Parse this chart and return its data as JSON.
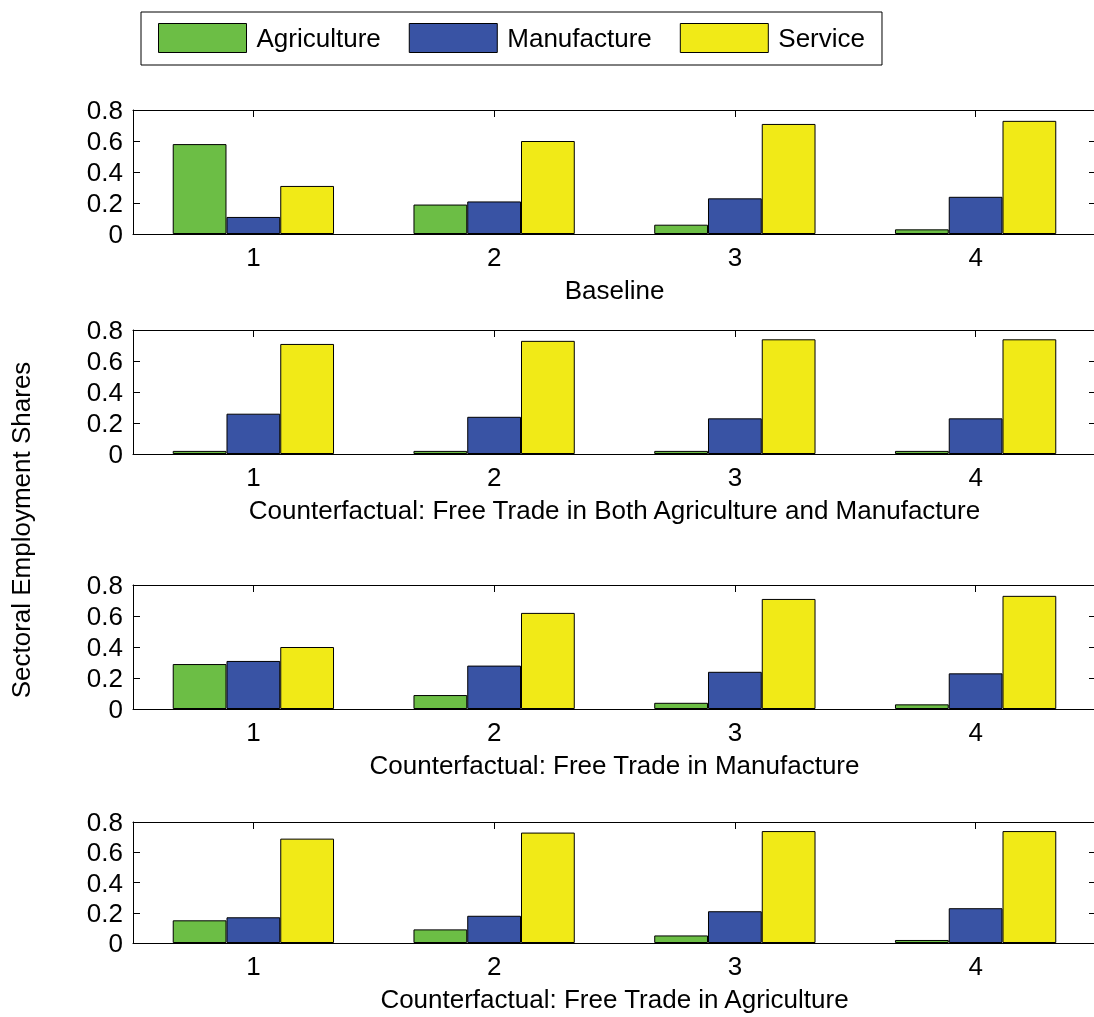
{
  "chart_data": [
    {
      "type": "bar",
      "xlabel": "Baseline",
      "categories": [
        "1",
        "2",
        "3",
        "4"
      ],
      "series": [
        {
          "name": "Agriculture",
          "color": "#6cbe45",
          "values": [
            0.58,
            0.19,
            0.06,
            0.03
          ]
        },
        {
          "name": "Manufacture",
          "color": "#3953a4",
          "values": [
            0.11,
            0.21,
            0.23,
            0.24
          ]
        },
        {
          "name": "Service",
          "color": "#f1ea17",
          "values": [
            0.31,
            0.6,
            0.71,
            0.73
          ]
        }
      ],
      "ylim": [
        0,
        0.8
      ],
      "yticks": [
        0,
        0.2,
        0.4,
        0.6,
        0.8
      ],
      "legend": "top"
    },
    {
      "type": "bar",
      "xlabel": "Counterfactual: Free Trade in Both Agriculture and Manufacture",
      "ylabel": "Sectoral Employment Shares",
      "categories": [
        "1",
        "2",
        "3",
        "4"
      ],
      "series": [
        {
          "color": "#6cbe45",
          "values": [
            0.02,
            0.02,
            0.02,
            0.02
          ]
        },
        {
          "color": "#3953a4",
          "values": [
            0.26,
            0.24,
            0.23,
            0.23
          ]
        },
        {
          "color": "#f1ea17",
          "values": [
            0.71,
            0.73,
            0.74,
            0.74
          ]
        }
      ],
      "ylim": [
        0,
        0.8
      ],
      "yticks": [
        0,
        0.2,
        0.4,
        0.6,
        0.8
      ]
    },
    {
      "type": "bar",
      "xlabel": "Counterfactual: Free Trade in Manufacture",
      "categories": [
        "1",
        "2",
        "3",
        "4"
      ],
      "series": [
        {
          "color": "#6cbe45",
          "values": [
            0.29,
            0.09,
            0.04,
            0.03
          ]
        },
        {
          "color": "#3953a4",
          "values": [
            0.31,
            0.28,
            0.24,
            0.23
          ]
        },
        {
          "color": "#f1ea17",
          "values": [
            0.4,
            0.62,
            0.71,
            0.73
          ]
        }
      ],
      "ylim": [
        0,
        0.8
      ],
      "yticks": [
        0,
        0.2,
        0.4,
        0.6,
        0.8
      ]
    },
    {
      "type": "bar",
      "xlabel": "Counterfactual: Free Trade in Agriculture",
      "categories": [
        "1",
        "2",
        "3",
        "4"
      ],
      "series": [
        {
          "color": "#6cbe45",
          "values": [
            0.15,
            0.09,
            0.05,
            0.02
          ]
        },
        {
          "color": "#3953a4",
          "values": [
            0.17,
            0.18,
            0.21,
            0.23
          ]
        },
        {
          "color": "#f1ea17",
          "values": [
            0.69,
            0.73,
            0.74,
            0.74
          ]
        }
      ],
      "ylim": [
        0,
        0.8
      ],
      "yticks": [
        0,
        0.2,
        0.4,
        0.6,
        0.8
      ]
    }
  ]
}
